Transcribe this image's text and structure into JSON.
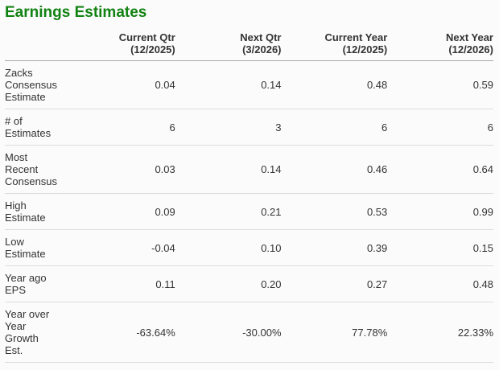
{
  "title": "Earnings Estimates",
  "colors": {
    "title_green": "#128212",
    "text": "#333333",
    "header_rule": "#a8a8a8",
    "row_rule": "#dcdcdc",
    "background": "#fbfbfb"
  },
  "table": {
    "columns": [
      {
        "label": "Current Qtr",
        "period": "(12/2025)"
      },
      {
        "label": "Next Qtr",
        "period": "(3/2026)"
      },
      {
        "label": "Current Year",
        "period": "(12/2025)"
      },
      {
        "label": "Next Year",
        "period": "(12/2026)"
      }
    ],
    "rows": [
      {
        "label": "Zacks Consensus Estimate",
        "values": [
          "0.04",
          "0.14",
          "0.48",
          "0.59"
        ]
      },
      {
        "label": "# of Estimates",
        "values": [
          "6",
          "3",
          "6",
          "6"
        ]
      },
      {
        "label": "Most Recent Consensus",
        "values": [
          "0.03",
          "0.14",
          "0.46",
          "0.64"
        ]
      },
      {
        "label": "High Estimate",
        "values": [
          "0.09",
          "0.21",
          "0.53",
          "0.99"
        ]
      },
      {
        "label": "Low Estimate",
        "values": [
          "-0.04",
          "0.10",
          "0.39",
          "0.15"
        ]
      },
      {
        "label": "Year ago EPS",
        "values": [
          "0.11",
          "0.20",
          "0.27",
          "0.48"
        ]
      },
      {
        "label": "Year over Year Growth Est.",
        "values": [
          "-63.64%",
          "-30.00%",
          "77.78%",
          "22.33%"
        ]
      }
    ]
  }
}
